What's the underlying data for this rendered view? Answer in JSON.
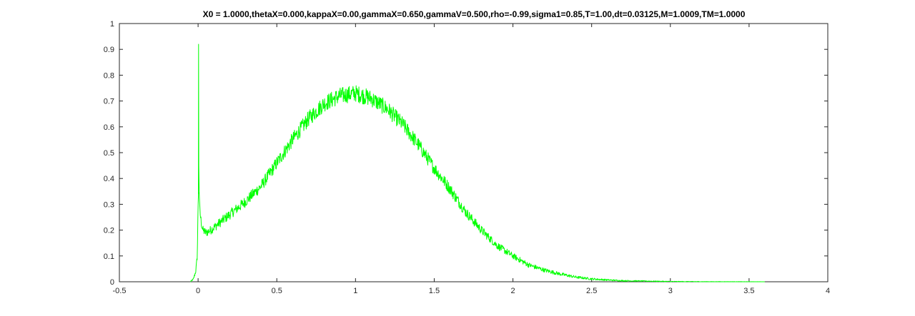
{
  "chart_data": {
    "type": "line",
    "title": "X0 = 1.0000,thetaX=0.000,kappaX=0.00,gammaX=0.650,gammaV=0.500,rho=-0.99,sigma1=0.85,T=1.00,dt=0.03125,M=1.0009,TM=1.0000",
    "xlabel": "",
    "ylabel": "",
    "xlim": [
      -0.5,
      4
    ],
    "ylim": [
      0,
      1
    ],
    "x_ticks": [
      -0.5,
      0,
      0.5,
      1,
      1.5,
      2,
      2.5,
      3,
      3.5,
      4
    ],
    "x_tick_labels": [
      "-0.5",
      "0",
      "0.5",
      "1",
      "1.5",
      "2",
      "2.5",
      "3",
      "3.5",
      "4"
    ],
    "y_ticks": [
      0,
      0.1,
      0.2,
      0.3,
      0.4,
      0.5,
      0.6,
      0.7,
      0.8,
      0.9,
      1
    ],
    "y_tick_labels": [
      "0",
      "0.1",
      "0.2",
      "0.3",
      "0.4",
      "0.5",
      "0.6",
      "0.7",
      "0.8",
      "0.9",
      "1"
    ],
    "grid": false,
    "box": true,
    "series": [
      {
        "color": "#00ff00",
        "noise_amplitude_ratio": 0.07,
        "spike": {
          "x": 0.003,
          "y": 0.92
        },
        "x": [
          -0.05,
          -0.03,
          -0.015,
          -0.005,
          0.0,
          0.005,
          0.01,
          0.02,
          0.03,
          0.05,
          0.08,
          0.12,
          0.2,
          0.3,
          0.4,
          0.5,
          0.6,
          0.7,
          0.8,
          0.9,
          1.0,
          1.1,
          1.2,
          1.3,
          1.4,
          1.5,
          1.6,
          1.7,
          1.8,
          1.9,
          2.0,
          2.1,
          2.2,
          2.3,
          2.4,
          2.5,
          2.6,
          2.7,
          2.8,
          2.9,
          3.0,
          3.2,
          3.4,
          3.6
        ],
        "y": [
          0.0,
          0.01,
          0.04,
          0.1,
          0.3,
          0.4,
          0.28,
          0.23,
          0.2,
          0.19,
          0.2,
          0.22,
          0.26,
          0.31,
          0.37,
          0.46,
          0.55,
          0.63,
          0.69,
          0.72,
          0.73,
          0.71,
          0.67,
          0.61,
          0.53,
          0.44,
          0.36,
          0.27,
          0.2,
          0.14,
          0.1,
          0.065,
          0.045,
          0.03,
          0.018,
          0.011,
          0.007,
          0.004,
          0.003,
          0.002,
          0.001,
          0.0004,
          0.0002,
          0.0
        ]
      }
    ]
  }
}
